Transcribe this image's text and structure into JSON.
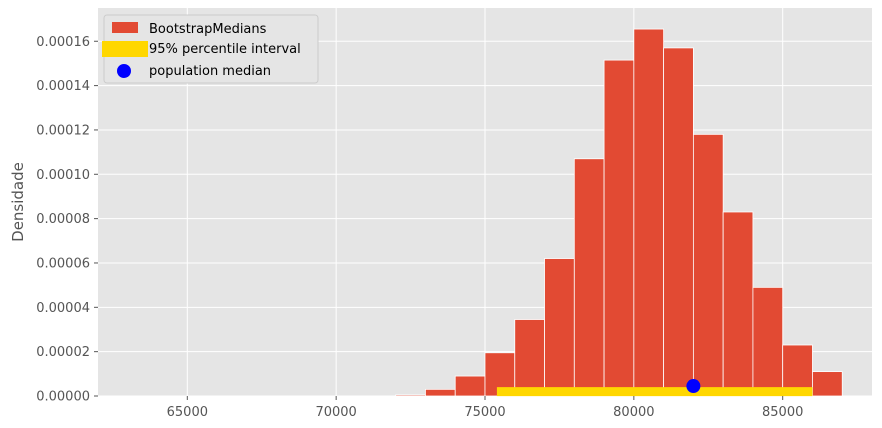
{
  "chart_data": {
    "type": "bar",
    "title": "",
    "xlabel": "",
    "ylabel": "Densidade",
    "xlim": [
      62000,
      88000
    ],
    "ylim": [
      0,
      0.000175
    ],
    "grid": true,
    "legend_placement": "top-left",
    "x_ticks": [
      65000,
      70000,
      75000,
      80000,
      85000
    ],
    "x_tick_labels": [
      "65000",
      "70000",
      "75000",
      "80000",
      "85000"
    ],
    "y_ticks": [
      0,
      2e-05,
      4e-05,
      6e-05,
      8e-05,
      0.0001,
      0.00012,
      0.00014,
      0.00016
    ],
    "y_tick_labels": [
      "0.00000",
      "0.00002",
      "0.00004",
      "0.00006",
      "0.00008",
      "0.00010",
      "0.00012",
      "0.00014",
      "0.00016"
    ],
    "bin_edges": [
      62000,
      63000,
      64000,
      65000,
      66000,
      67000,
      68000,
      69000,
      70000,
      71000,
      72000,
      73000,
      74000,
      75000,
      76000,
      77000,
      78000,
      79000,
      80000,
      81000,
      82000,
      83000,
      84000,
      85000,
      86000,
      87000
    ],
    "series": [
      {
        "name": "BootstrapMedians",
        "values": [
          0,
          0,
          0,
          0,
          0,
          0,
          0,
          0,
          0,
          0,
          5e-07,
          3e-06,
          9e-06,
          1.95e-05,
          3.45e-05,
          6.2e-05,
          0.000107,
          0.0001515,
          0.0001655,
          0.000157,
          0.000118,
          8.3e-05,
          4.9e-05,
          2.3e-05,
          1.1e-05
        ]
      }
    ],
    "interval": {
      "name": "95% percentile interval",
      "x": [
        75400,
        86000
      ],
      "y": 2e-06
    },
    "population_median": {
      "name": "population median",
      "x": 82000,
      "y": 4.5e-06
    },
    "colors": {
      "bars": "#E24A33",
      "bar_edge": "#FFFFFF",
      "interval": "#FFD700",
      "median": "#0000FF",
      "plot_background": "#E5E5E5",
      "grid": "#FFFFFF",
      "legend_background": "#E5E5E5",
      "legend_border": "#CCCCCC"
    }
  }
}
